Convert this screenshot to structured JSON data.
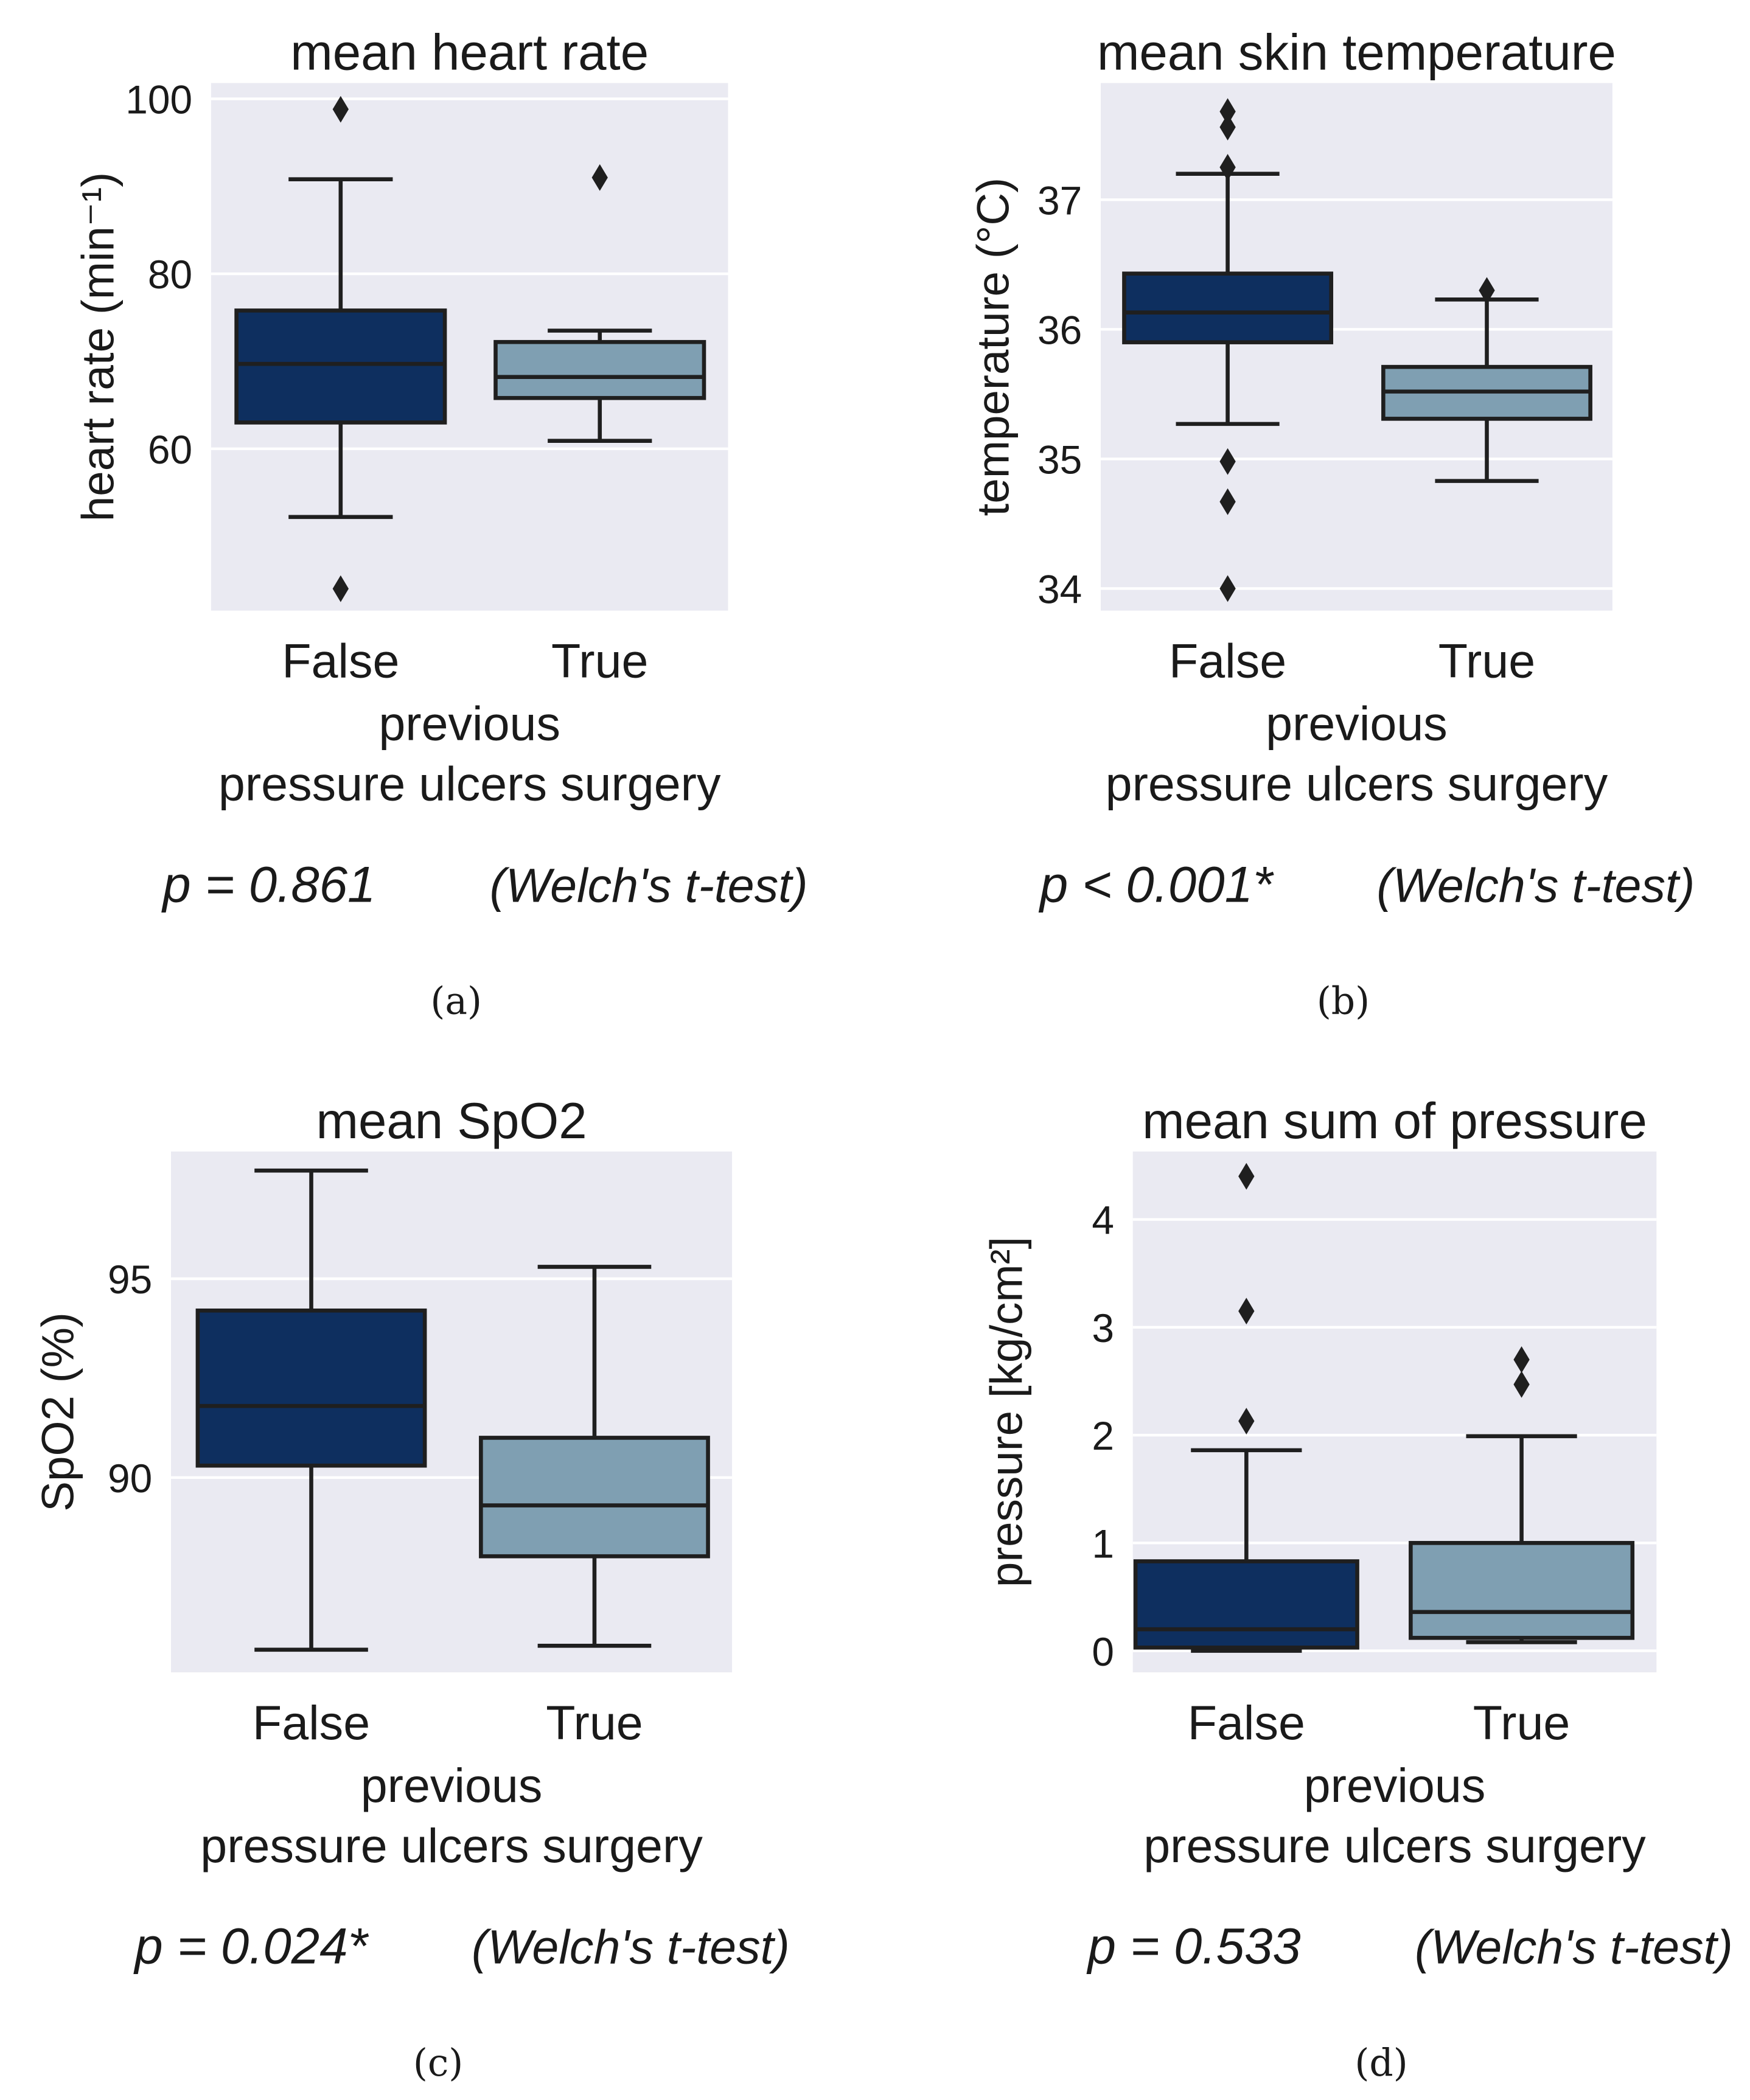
{
  "colors": {
    "background": "#eaeaf2",
    "grid": "#ffffff",
    "false_box": "#0e2f5f",
    "true_box": "#7f9fb2",
    "line": "#1f1f1f"
  },
  "chart_data": [
    {
      "type": "box",
      "caption": "(a)",
      "title": "mean heart rate",
      "ylabel": "heart rate (min⁻¹)",
      "xlabel": [
        "previous",
        "pressure ulcers surgery"
      ],
      "categories": [
        "False",
        "True"
      ],
      "yticks": [
        60,
        80,
        100
      ],
      "ytick_labels": [
        "60",
        "80",
        "100"
      ],
      "ylim": [
        41.5,
        101.8
      ],
      "stat": {
        "p_text": "p = 0.861",
        "test": "(Welch's t-test)"
      },
      "boxes": [
        {
          "q1": 63.0,
          "median": 69.7,
          "q3": 75.8,
          "whislo": 52.2,
          "whishi": 90.8,
          "fliers": [
            98.8,
            44.0
          ]
        },
        {
          "q1": 65.8,
          "median": 68.2,
          "q3": 72.2,
          "whislo": 60.9,
          "whishi": 73.5,
          "fliers": [
            91.0
          ]
        }
      ]
    },
    {
      "type": "box",
      "caption": "(b)",
      "title": "mean skin temperature",
      "ylabel": "temperature (°C)",
      "xlabel": [
        "previous",
        "pressure ulcers surgery"
      ],
      "categories": [
        "False",
        "True"
      ],
      "yticks": [
        34,
        35,
        36,
        37
      ],
      "ytick_labels": [
        "34",
        "35",
        "36",
        "37"
      ],
      "ylim": [
        33.83,
        37.9
      ],
      "stat": {
        "p_text": "p < 0.001*",
        "test": "(Welch's t-test)"
      },
      "boxes": [
        {
          "q1": 35.9,
          "median": 36.13,
          "q3": 36.43,
          "whislo": 35.27,
          "whishi": 37.2,
          "fliers": [
            37.68,
            37.56,
            37.25,
            34.98,
            34.67,
            34.0
          ]
        },
        {
          "q1": 35.31,
          "median": 35.52,
          "q3": 35.71,
          "whislo": 34.83,
          "whishi": 36.23,
          "fliers": [
            36.3
          ]
        }
      ]
    },
    {
      "type": "box",
      "caption": "(c)",
      "title": "mean SpO2",
      "ylabel": "SpO2 (%)",
      "xlabel": [
        "previous",
        "pressure ulcers surgery"
      ],
      "categories": [
        "False",
        "True"
      ],
      "yticks": [
        90,
        95
      ],
      "ytick_labels": [
        "90",
        "95"
      ],
      "ylim": [
        85.1,
        98.2
      ],
      "stat": {
        "p_text": "p = 0.024*",
        "test": "(Welch's t-test)"
      },
      "boxes": [
        {
          "q1": 90.3,
          "median": 91.8,
          "q3": 94.2,
          "whislo": 85.67,
          "whishi": 97.72,
          "fliers": []
        },
        {
          "q1": 88.02,
          "median": 89.3,
          "q3": 91.0,
          "whislo": 85.77,
          "whishi": 95.3,
          "fliers": []
        }
      ]
    },
    {
      "type": "box",
      "caption": "(d)",
      "title": "mean sum of pressure",
      "ylabel": "pressure [kg/cm²]",
      "xlabel": [
        "previous",
        "pressure ulcers surgery"
      ],
      "categories": [
        "False",
        "True"
      ],
      "yticks": [
        0,
        1,
        2,
        3,
        4
      ],
      "ytick_labels": [
        "0",
        "1",
        "2",
        "3",
        "4"
      ],
      "ylim": [
        -0.2,
        4.63
      ],
      "stat": {
        "p_text": "p = 0.533",
        "test": "(Welch's t-test)"
      },
      "boxes": [
        {
          "q1": 0.03,
          "median": 0.2,
          "q3": 0.83,
          "whislo": 0.0,
          "whishi": 1.86,
          "fliers": [
            4.4,
            3.15,
            2.13
          ]
        },
        {
          "q1": 0.12,
          "median": 0.36,
          "q3": 1.0,
          "whislo": 0.08,
          "whishi": 1.99,
          "fliers": [
            2.7,
            2.47
          ]
        }
      ]
    }
  ]
}
